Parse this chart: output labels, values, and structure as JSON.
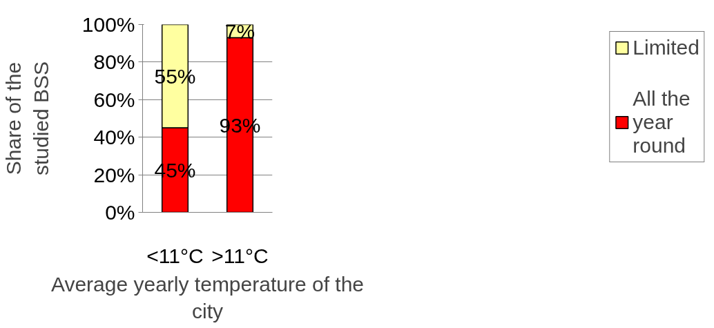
{
  "chart_data": {
    "type": "bar",
    "stacked": true,
    "categories": [
      "<11°C",
      ">11°C"
    ],
    "series": [
      {
        "name": "All the year round",
        "color": "#ff0000",
        "values": [
          45,
          93
        ],
        "value_labels": [
          "45%",
          "93%"
        ]
      },
      {
        "name": "Limited",
        "color": "#ffffa0",
        "values": [
          55,
          7
        ],
        "value_labels": [
          "55%",
          "7%"
        ]
      }
    ],
    "xlabel": "Average yearly temperature of the\ncity",
    "ylabel": "Share of the\nstudied BSS",
    "ylim": [
      0,
      100
    ],
    "yticks": [
      {
        "value": 0,
        "label": "0%"
      },
      {
        "value": 20,
        "label": "20%"
      },
      {
        "value": 40,
        "label": "40%"
      },
      {
        "value": 60,
        "label": "60%"
      },
      {
        "value": 80,
        "label": "80%"
      },
      {
        "value": 100,
        "label": "100%"
      }
    ],
    "grid": "y",
    "legend": "right"
  }
}
